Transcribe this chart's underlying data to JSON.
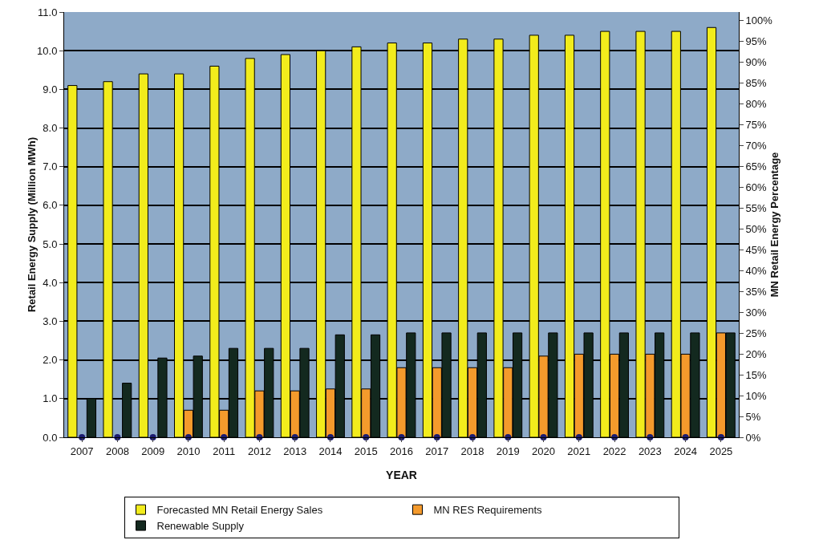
{
  "chart_data": {
    "type": "bar",
    "xlabel": "YEAR",
    "ylabel": "Retail Energy Supply (Million MWh)",
    "y2label": "MN Retail Energy Percentage",
    "categories": [
      "2007",
      "2008",
      "2009",
      "2010",
      "2011",
      "2012",
      "2013",
      "2014",
      "2015",
      "2016",
      "2017",
      "2018",
      "2019",
      "2020",
      "2021",
      "2022",
      "2023",
      "2024",
      "2025"
    ],
    "series": [
      {
        "name": "Forecasted MN Retail Energy Sales",
        "color": "#f2ec1c",
        "values": [
          9.1,
          9.2,
          9.4,
          9.4,
          9.6,
          9.8,
          9.9,
          10.0,
          10.1,
          10.2,
          10.2,
          10.3,
          10.3,
          10.4,
          10.4,
          10.5,
          10.5,
          10.5,
          10.6
        ]
      },
      {
        "name": "MN RES Requirements",
        "color": "#f49a2c",
        "values": [
          null,
          null,
          null,
          0.7,
          0.7,
          1.2,
          1.2,
          1.25,
          1.25,
          1.8,
          1.8,
          1.8,
          1.8,
          2.1,
          2.15,
          2.15,
          2.15,
          2.15,
          2.7
        ]
      },
      {
        "name": "Renewable Supply",
        "color": "#13291f",
        "values": [
          1.0,
          1.4,
          2.05,
          2.1,
          2.3,
          2.3,
          2.3,
          2.65,
          2.65,
          2.7,
          2.7,
          2.7,
          2.7,
          2.7,
          2.7,
          2.7,
          2.7,
          2.7,
          2.7
        ]
      },
      {
        "type": "scatter",
        "axis": "y2",
        "color": "#1c1c70",
        "values": [
          0,
          0,
          0,
          0,
          0,
          0,
          0,
          0,
          0,
          0,
          0,
          0,
          0,
          0,
          0,
          0,
          0,
          0,
          0
        ]
      }
    ],
    "marker": "circle",
    "ylim": [
      0,
      11
    ],
    "yticks": [
      {
        "value": 0,
        "label": "0.0"
      },
      {
        "value": 1,
        "label": "1.0"
      },
      {
        "value": 2,
        "label": "2.0"
      },
      {
        "value": 3,
        "label": "3.0"
      },
      {
        "value": 4,
        "label": "4.0"
      },
      {
        "value": 5,
        "label": "5.0"
      },
      {
        "value": 6,
        "label": "6.0"
      },
      {
        "value": 7,
        "label": "7.0"
      },
      {
        "value": 8,
        "label": "8.0"
      },
      {
        "value": 9,
        "label": "9.0"
      },
      {
        "value": 10,
        "label": "10.0"
      },
      {
        "value": 11,
        "label": "11.0"
      }
    ],
    "y2lim": [
      0,
      102
    ],
    "y2ticks": [
      {
        "value": 0,
        "label": "0%"
      },
      {
        "value": 5,
        "label": "5%"
      },
      {
        "value": 10,
        "label": "10%"
      },
      {
        "value": 15,
        "label": "15%"
      },
      {
        "value": 20,
        "label": "20%"
      },
      {
        "value": 25,
        "label": "25%"
      },
      {
        "value": 30,
        "label": "30%"
      },
      {
        "value": 35,
        "label": "35%"
      },
      {
        "value": 40,
        "label": "40%"
      },
      {
        "value": 45,
        "label": "45%"
      },
      {
        "value": 50,
        "label": "50%"
      },
      {
        "value": 55,
        "label": "55%"
      },
      {
        "value": 60,
        "label": "60%"
      },
      {
        "value": 65,
        "label": "65%"
      },
      {
        "value": 70,
        "label": "70%"
      },
      {
        "value": 75,
        "label": "75%"
      },
      {
        "value": 80,
        "label": "80%"
      },
      {
        "value": 85,
        "label": "85%"
      },
      {
        "value": 90,
        "label": "90%"
      },
      {
        "value": 95,
        "label": "95%"
      },
      {
        "value": 100,
        "label": "100%"
      }
    ],
    "grid": "y",
    "legend": "bottom"
  }
}
